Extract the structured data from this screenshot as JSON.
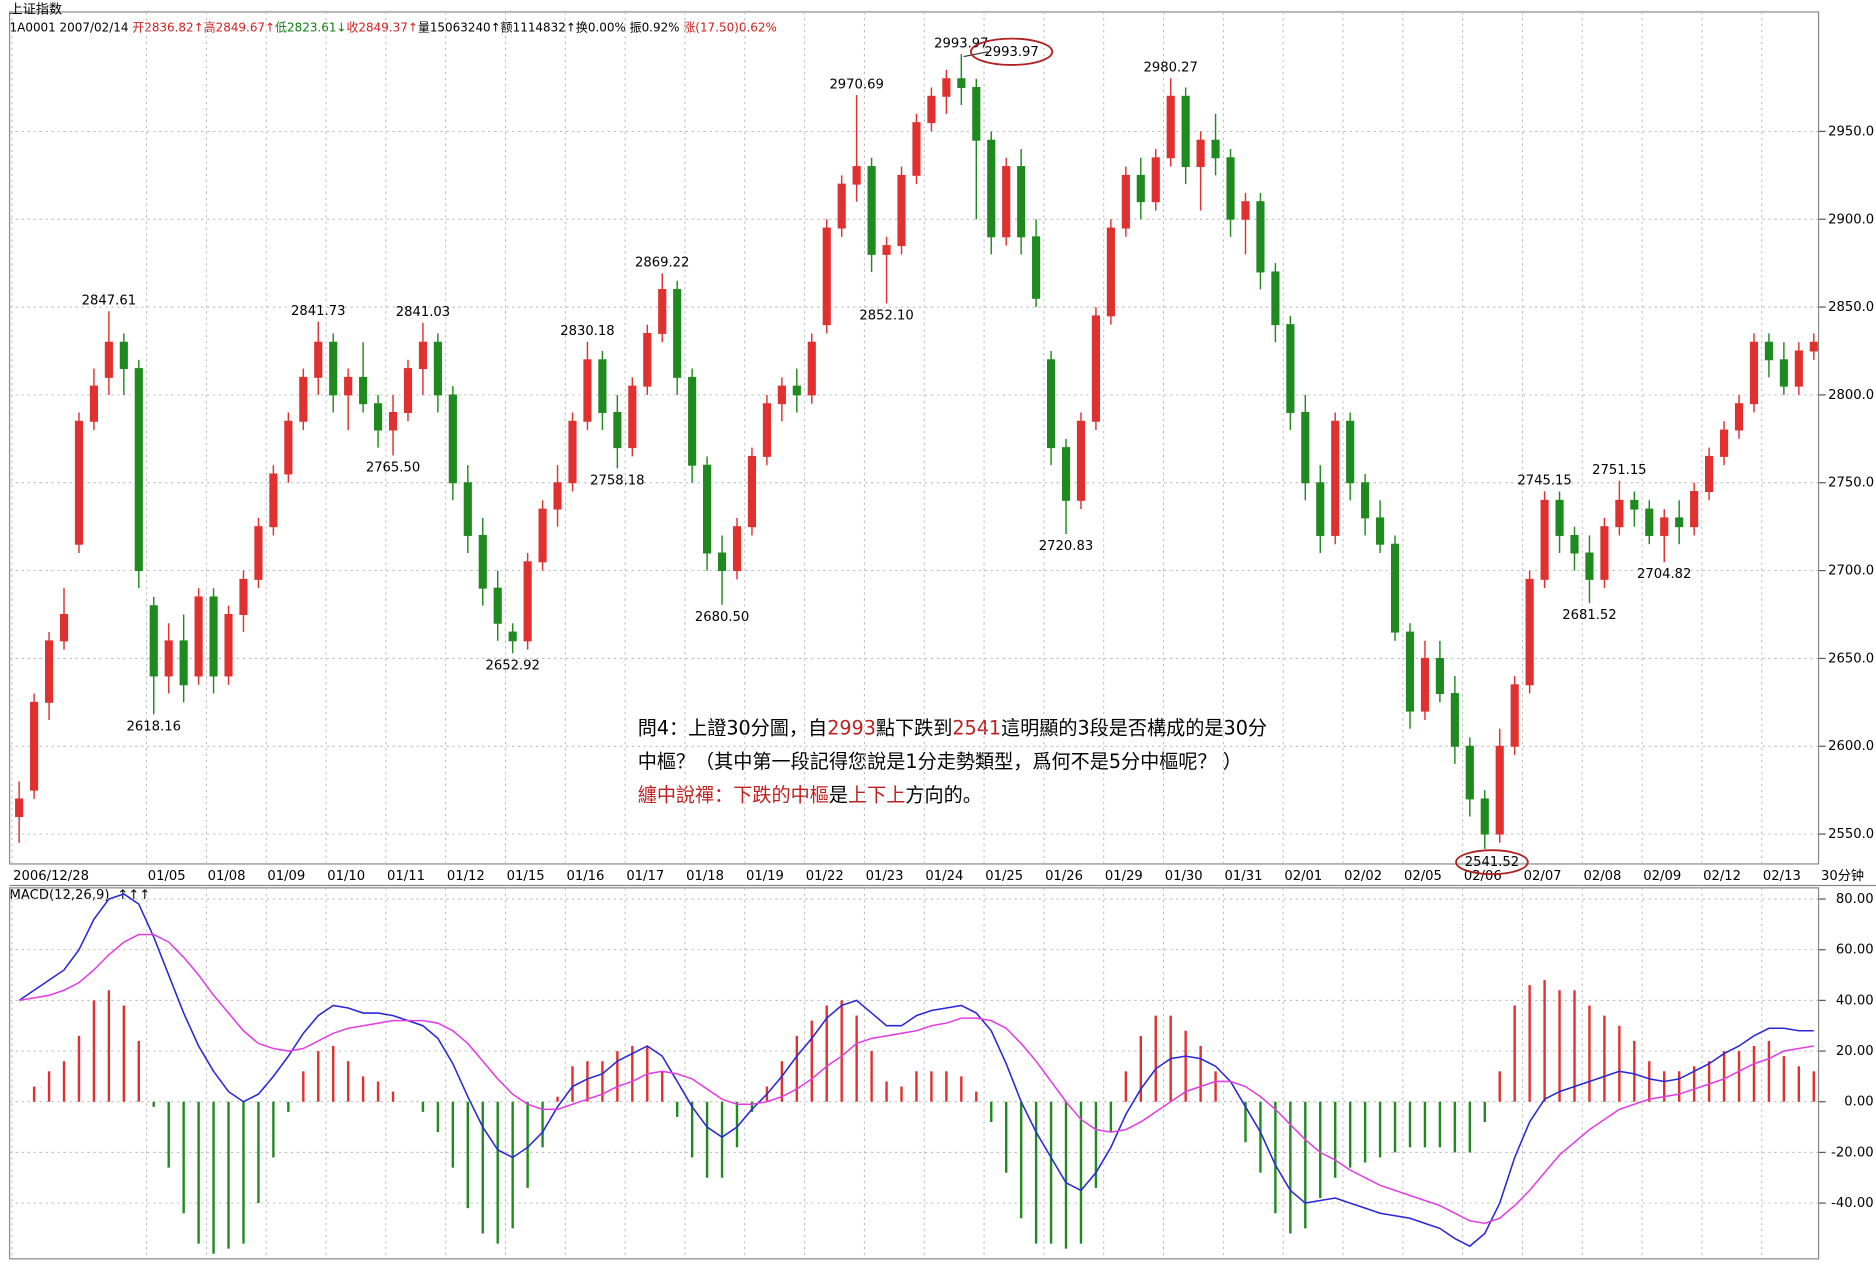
{
  "chart_data": {
    "type": "candlestick",
    "title": "上证指数",
    "info": [
      {
        "text": "1A0001 2007/02/14 ",
        "color": "#000000"
      },
      {
        "text": "开2836.82↑",
        "color": "#d02020"
      },
      {
        "text": "高2849.67↑",
        "color": "#d02020"
      },
      {
        "text": "低2823.61↓",
        "color": "#108010"
      },
      {
        "text": "收2849.37↑",
        "color": "#d02020"
      },
      {
        "text": "量15063240↑",
        "color": "#000000"
      },
      {
        "text": "额1114832↑",
        "color": "#000000"
      },
      {
        "text": "换0.00% ",
        "color": "#000000"
      },
      {
        "text": "振0.92% ",
        "color": "#000000"
      },
      {
        "text": "涨(17.50)0.62%",
        "color": "#d02020"
      }
    ],
    "period_label": "30分钟",
    "up_color": "#e03030",
    "down_color": "#1f8a1f",
    "grid": true,
    "categories": [
      "2006/12/28",
      null,
      null,
      null,
      null,
      null,
      null,
      null,
      null,
      "01/05",
      null,
      null,
      null,
      "01/08",
      null,
      null,
      null,
      "01/09",
      null,
      null,
      null,
      "01/10",
      null,
      null,
      null,
      "01/11",
      null,
      null,
      null,
      "01/12",
      null,
      null,
      null,
      "01/15",
      null,
      null,
      null,
      "01/16",
      null,
      null,
      null,
      "01/17",
      null,
      null,
      null,
      "01/18",
      null,
      null,
      null,
      "01/19",
      null,
      null,
      null,
      "01/22",
      null,
      null,
      null,
      "01/23",
      null,
      null,
      null,
      "01/24",
      null,
      null,
      null,
      "01/25",
      null,
      null,
      null,
      "01/26",
      null,
      null,
      null,
      "01/29",
      null,
      null,
      null,
      "01/30",
      null,
      null,
      null,
      "01/31",
      null,
      null,
      null,
      "02/01",
      null,
      null,
      null,
      "02/02",
      null,
      null,
      null,
      "02/05",
      null,
      null,
      null,
      "02/06",
      null,
      null,
      null,
      "02/07",
      null,
      null,
      null,
      "02/08",
      null,
      null,
      null,
      "02/09",
      null,
      null,
      null,
      "02/12",
      null,
      null,
      null,
      "02/13",
      null,
      null,
      null
    ],
    "ohlc": [
      [
        2560,
        2580,
        2545,
        2570
      ],
      [
        2575,
        2630,
        2570,
        2625
      ],
      [
        2625,
        2665,
        2615,
        2660
      ],
      [
        2660,
        2690,
        2655,
        2675
      ],
      [
        2715,
        2790,
        2710,
        2785
      ],
      [
        2785,
        2815,
        2780,
        2805
      ],
      [
        2810,
        2847.61,
        2800,
        2830
      ],
      [
        2830,
        2835,
        2800,
        2815
      ],
      [
        2815,
        2820,
        2690,
        2700
      ],
      [
        2680,
        2685,
        2618.16,
        2640
      ],
      [
        2640,
        2670,
        2630,
        2660
      ],
      [
        2660,
        2675,
        2625,
        2635
      ],
      [
        2640,
        2690,
        2635,
        2685
      ],
      [
        2685,
        2690,
        2630,
        2640
      ],
      [
        2640,
        2680,
        2635,
        2675
      ],
      [
        2675,
        2700,
        2665,
        2695
      ],
      [
        2695,
        2730,
        2690,
        2725
      ],
      [
        2725,
        2760,
        2720,
        2755
      ],
      [
        2755,
        2790,
        2750,
        2785
      ],
      [
        2785,
        2815,
        2780,
        2810
      ],
      [
        2810,
        2841.73,
        2800,
        2830
      ],
      [
        2830,
        2835,
        2790,
        2800
      ],
      [
        2800,
        2815,
        2780,
        2810
      ],
      [
        2810,
        2830,
        2790,
        2795
      ],
      [
        2795,
        2800,
        2770,
        2780
      ],
      [
        2780,
        2800,
        2765.5,
        2790
      ],
      [
        2790,
        2820,
        2785,
        2815
      ],
      [
        2815,
        2841.03,
        2800,
        2830
      ],
      [
        2830,
        2835,
        2790,
        2800
      ],
      [
        2800,
        2805,
        2740,
        2750
      ],
      [
        2750,
        2760,
        2710,
        2720
      ],
      [
        2720,
        2730,
        2680,
        2690
      ],
      [
        2690,
        2700,
        2660,
        2670
      ],
      [
        2665,
        2670,
        2652.92,
        2660
      ],
      [
        2660,
        2710,
        2655,
        2705
      ],
      [
        2705,
        2740,
        2700,
        2735
      ],
      [
        2735,
        2760,
        2725,
        2750
      ],
      [
        2750,
        2790,
        2745,
        2785
      ],
      [
        2785,
        2830.18,
        2780,
        2820
      ],
      [
        2820,
        2825,
        2780,
        2790
      ],
      [
        2790,
        2800,
        2758.18,
        2770
      ],
      [
        2770,
        2810,
        2765,
        2805
      ],
      [
        2805,
        2840,
        2800,
        2835
      ],
      [
        2835,
        2869.22,
        2830,
        2860
      ],
      [
        2860,
        2865,
        2800,
        2810
      ],
      [
        2810,
        2815,
        2750,
        2760
      ],
      [
        2760,
        2765,
        2700,
        2710
      ],
      [
        2710,
        2720,
        2680.5,
        2700
      ],
      [
        2700,
        2730,
        2695,
        2725
      ],
      [
        2725,
        2770,
        2720,
        2765
      ],
      [
        2765,
        2800,
        2760,
        2795
      ],
      [
        2795,
        2810,
        2785,
        2805
      ],
      [
        2805,
        2815,
        2790,
        2800
      ],
      [
        2800,
        2835,
        2795,
        2830
      ],
      [
        2840,
        2900,
        2835,
        2895
      ],
      [
        2895,
        2925,
        2890,
        2920
      ],
      [
        2920,
        2970.69,
        2910,
        2930
      ],
      [
        2930,
        2935,
        2870,
        2880
      ],
      [
        2880,
        2890,
        2852.1,
        2885
      ],
      [
        2885,
        2930,
        2880,
        2925
      ],
      [
        2925,
        2960,
        2920,
        2955
      ],
      [
        2955,
        2975,
        2950,
        2970
      ],
      [
        2970,
        2985,
        2960,
        2980
      ],
      [
        2980,
        2993.97,
        2965,
        2975
      ],
      [
        2975,
        2980,
        2900,
        2945
      ],
      [
        2945,
        2950,
        2880,
        2890
      ],
      [
        2890,
        2935,
        2885,
        2930
      ],
      [
        2930,
        2940,
        2880,
        2890
      ],
      [
        2890,
        2900,
        2850,
        2855
      ],
      [
        2820,
        2825,
        2760,
        2770
      ],
      [
        2770,
        2775,
        2720.83,
        2740
      ],
      [
        2740,
        2790,
        2735,
        2785
      ],
      [
        2785,
        2850,
        2780,
        2845
      ],
      [
        2845,
        2900,
        2840,
        2895
      ],
      [
        2895,
        2930,
        2890,
        2925
      ],
      [
        2925,
        2935,
        2900,
        2910
      ],
      [
        2910,
        2940,
        2905,
        2935
      ],
      [
        2935,
        2980.27,
        2930,
        2970
      ],
      [
        2970,
        2975,
        2920,
        2930
      ],
      [
        2930,
        2950,
        2905,
        2945
      ],
      [
        2945,
        2960,
        2925,
        2935
      ],
      [
        2935,
        2940,
        2890,
        2900
      ],
      [
        2900,
        2915,
        2880,
        2910
      ],
      [
        2910,
        2915,
        2860,
        2870
      ],
      [
        2870,
        2875,
        2830,
        2840
      ],
      [
        2840,
        2845,
        2780,
        2790
      ],
      [
        2790,
        2800,
        2740,
        2750
      ],
      [
        2750,
        2760,
        2710,
        2720
      ],
      [
        2720,
        2790,
        2715,
        2785
      ],
      [
        2785,
        2790,
        2740,
        2750
      ],
      [
        2750,
        2755,
        2720,
        2730
      ],
      [
        2730,
        2740,
        2710,
        2715
      ],
      [
        2715,
        2720,
        2660,
        2665
      ],
      [
        2665,
        2670,
        2610,
        2620
      ],
      [
        2620,
        2660,
        2615,
        2650
      ],
      [
        2650,
        2660,
        2625,
        2630
      ],
      [
        2630,
        2640,
        2590,
        2600
      ],
      [
        2600,
        2605,
        2560,
        2570
      ],
      [
        2570,
        2575,
        2541.52,
        2550
      ],
      [
        2550,
        2610,
        2545,
        2600
      ],
      [
        2600,
        2640,
        2595,
        2635
      ],
      [
        2635,
        2700,
        2630,
        2695
      ],
      [
        2695,
        2745.15,
        2690,
        2740
      ],
      [
        2740,
        2745,
        2710,
        2720
      ],
      [
        2720,
        2725,
        2700,
        2710
      ],
      [
        2710,
        2720,
        2681.52,
        2695
      ],
      [
        2695,
        2730,
        2690,
        2725
      ],
      [
        2725,
        2751.15,
        2720,
        2740
      ],
      [
        2740,
        2745,
        2725,
        2735
      ],
      [
        2735,
        2740,
        2715,
        2720
      ],
      [
        2720,
        2735,
        2704.82,
        2730
      ],
      [
        2730,
        2740,
        2715,
        2725
      ],
      [
        2725,
        2750,
        2720,
        2745
      ],
      [
        2745,
        2770,
        2740,
        2765
      ],
      [
        2765,
        2785,
        2760,
        2780
      ],
      [
        2780,
        2800,
        2775,
        2795
      ],
      [
        2795,
        2835,
        2790,
        2830
      ],
      [
        2830,
        2835,
        2810,
        2820
      ],
      [
        2820,
        2830,
        2800,
        2805
      ],
      [
        2805,
        2830,
        2800,
        2825
      ],
      [
        2825,
        2835,
        2820,
        2830
      ]
    ],
    "annotations": [
      "2847.61",
      "2618.16",
      "2841.73",
      "2765.50",
      "2841.03",
      "2652.92",
      "2830.18",
      "2758.18",
      "2869.22",
      "2680.50",
      "2970.69",
      "2852.10",
      "2993.97",
      "2993.97",
      "2720.83",
      "2980.27",
      "2541.52",
      "2745.15",
      "2681.52",
      "2751.15",
      "2704.82"
    ],
    "ylim": [
      2533,
      3018
    ],
    "yticks": [
      {
        "value": 2550,
        "label": "2550.0"
      },
      {
        "value": 2600,
        "label": "2600.0"
      },
      {
        "value": 2650,
        "label": "2650.0"
      },
      {
        "value": 2700,
        "label": "2700.0"
      },
      {
        "value": 2750,
        "label": "2750.0"
      },
      {
        "value": 2800,
        "label": "2800.0"
      },
      {
        "value": 2850,
        "label": "2850.0"
      },
      {
        "value": 2900,
        "label": "2900.0"
      },
      {
        "value": 2950,
        "label": "2950.0"
      }
    ],
    "macd": {
      "title": "MACD(12,26,9)",
      "arrows": "↑↑↑",
      "arrow_color": "#3030e0",
      "ylim": [
        -62,
        84.4
      ],
      "yticks": [
        {
          "value": 80,
          "label": "80.00"
        },
        {
          "value": 60,
          "label": "60.00"
        },
        {
          "value": 40,
          "label": "40.00"
        },
        {
          "value": 20,
          "label": "20.00"
        },
        {
          "value": 0,
          "label": "0.00"
        },
        {
          "value": -20,
          "label": "-20.00"
        },
        {
          "value": -40,
          "label": "-40.00"
        }
      ],
      "lines": [
        {
          "color": "#2828d8",
          "values": [
            40,
            44,
            48,
            52,
            60,
            72,
            80,
            82,
            78,
            65,
            50,
            35,
            22,
            12,
            4,
            0,
            3,
            10,
            18,
            27,
            34,
            38,
            37,
            35,
            35,
            34,
            32,
            30,
            25,
            15,
            2,
            -10,
            -19,
            -22,
            -18,
            -12,
            -2,
            6,
            9,
            11,
            16,
            19,
            22,
            18,
            8,
            -2,
            -10,
            -14,
            -10,
            -3,
            3,
            10,
            18,
            25,
            33,
            38,
            40,
            35,
            30,
            30,
            34,
            36,
            37,
            38,
            35,
            28,
            15,
            0,
            -12,
            -22,
            -32,
            -35,
            -28,
            -18,
            -5,
            5,
            13,
            17,
            18,
            17,
            14,
            8,
            -2,
            -12,
            -25,
            -35,
            -40,
            -39,
            -38,
            -40,
            -42,
            -44,
            -45,
            -46,
            -48,
            -50,
            -54,
            -57,
            -52,
            -40,
            -22,
            -8,
            1,
            4,
            6,
            8,
            10,
            12,
            11,
            9,
            8,
            9,
            12,
            15,
            19,
            22,
            26,
            29,
            29,
            28,
            28
          ]
        },
        {
          "color": "#e040e0",
          "values": [
            40,
            41,
            42,
            44,
            47,
            52,
            58,
            63,
            66,
            66,
            63,
            57,
            50,
            42,
            35,
            28,
            23,
            21,
            20,
            21,
            24,
            27,
            29,
            30,
            31,
            32,
            32,
            32,
            31,
            28,
            23,
            16,
            9,
            3,
            -1,
            -3,
            -3,
            -1,
            1,
            3,
            6,
            8,
            11,
            12,
            11,
            9,
            5,
            1,
            -1,
            -1,
            0,
            2,
            5,
            9,
            14,
            18,
            23,
            25,
            26,
            27,
            28,
            30,
            31,
            33,
            33,
            32,
            29,
            23,
            16,
            8,
            0,
            -7,
            -11,
            -12,
            -11,
            -8,
            -4,
            0,
            4,
            6,
            8,
            8,
            6,
            2,
            -3,
            -9,
            -15,
            -20,
            -23,
            -27,
            -30,
            -33,
            -35,
            -37,
            -39,
            -41,
            -44,
            -47,
            -48,
            -46,
            -41,
            -35,
            -28,
            -21,
            -16,
            -11,
            -7,
            -3,
            -1,
            1,
            2,
            3,
            5,
            7,
            9,
            12,
            15,
            17,
            20,
            21,
            22
          ]
        }
      ],
      "histogram": [
        0,
        6,
        12,
        16,
        26,
        40,
        44,
        38,
        24,
        -2,
        -26,
        -44,
        -56,
        -60,
        -58,
        -56,
        -40,
        -22,
        -4,
        12,
        20,
        22,
        16,
        10,
        8,
        4,
        0,
        -4,
        -12,
        -26,
        -42,
        -52,
        -56,
        -50,
        -34,
        -18,
        2,
        14,
        16,
        16,
        20,
        22,
        22,
        12,
        -6,
        -22,
        -30,
        -30,
        -18,
        -4,
        6,
        16,
        26,
        32,
        38,
        40,
        34,
        20,
        8,
        6,
        12,
        12,
        12,
        10,
        4,
        -8,
        -28,
        -46,
        -56,
        -56,
        -58,
        -56,
        -34,
        -12,
        12,
        26,
        34,
        34,
        28,
        22,
        12,
        0,
        -16,
        -28,
        -44,
        -52,
        -50,
        -38,
        -30,
        -26,
        -24,
        -22,
        -20,
        -18,
        -18,
        -18,
        -20,
        -20,
        -8,
        12,
        38,
        46,
        48,
        44,
        44,
        38,
        34,
        30,
        24,
        16,
        12,
        12,
        14,
        16,
        20,
        20,
        22,
        24,
        18,
        14,
        12
      ]
    },
    "note": [
      [
        {
          "text": "問4：上證30分圖，自",
          "color": "#000000"
        },
        {
          "text": "2993",
          "color": "#c02020"
        },
        {
          "text": "點下跌到",
          "color": "#000000"
        },
        {
          "text": "2541",
          "color": "#c02020"
        },
        {
          "text": "這明顯的3段是否構成的是30分",
          "color": "#000000"
        }
      ],
      [
        {
          "text": "中樞？（其中第一段記得您說是1分走勢類型，爲何不是5分中樞呢？ ）",
          "color": "#000000"
        }
      ],
      [
        {
          "text": "纏中說禪：下跌的中樞",
          "color": "#c02020"
        },
        {
          "text": "是",
          "color": "#000000"
        },
        {
          "text": "上下上",
          "color": "#c02020"
        },
        {
          "text": "方向的。",
          "color": "#000000"
        }
      ]
    ]
  }
}
